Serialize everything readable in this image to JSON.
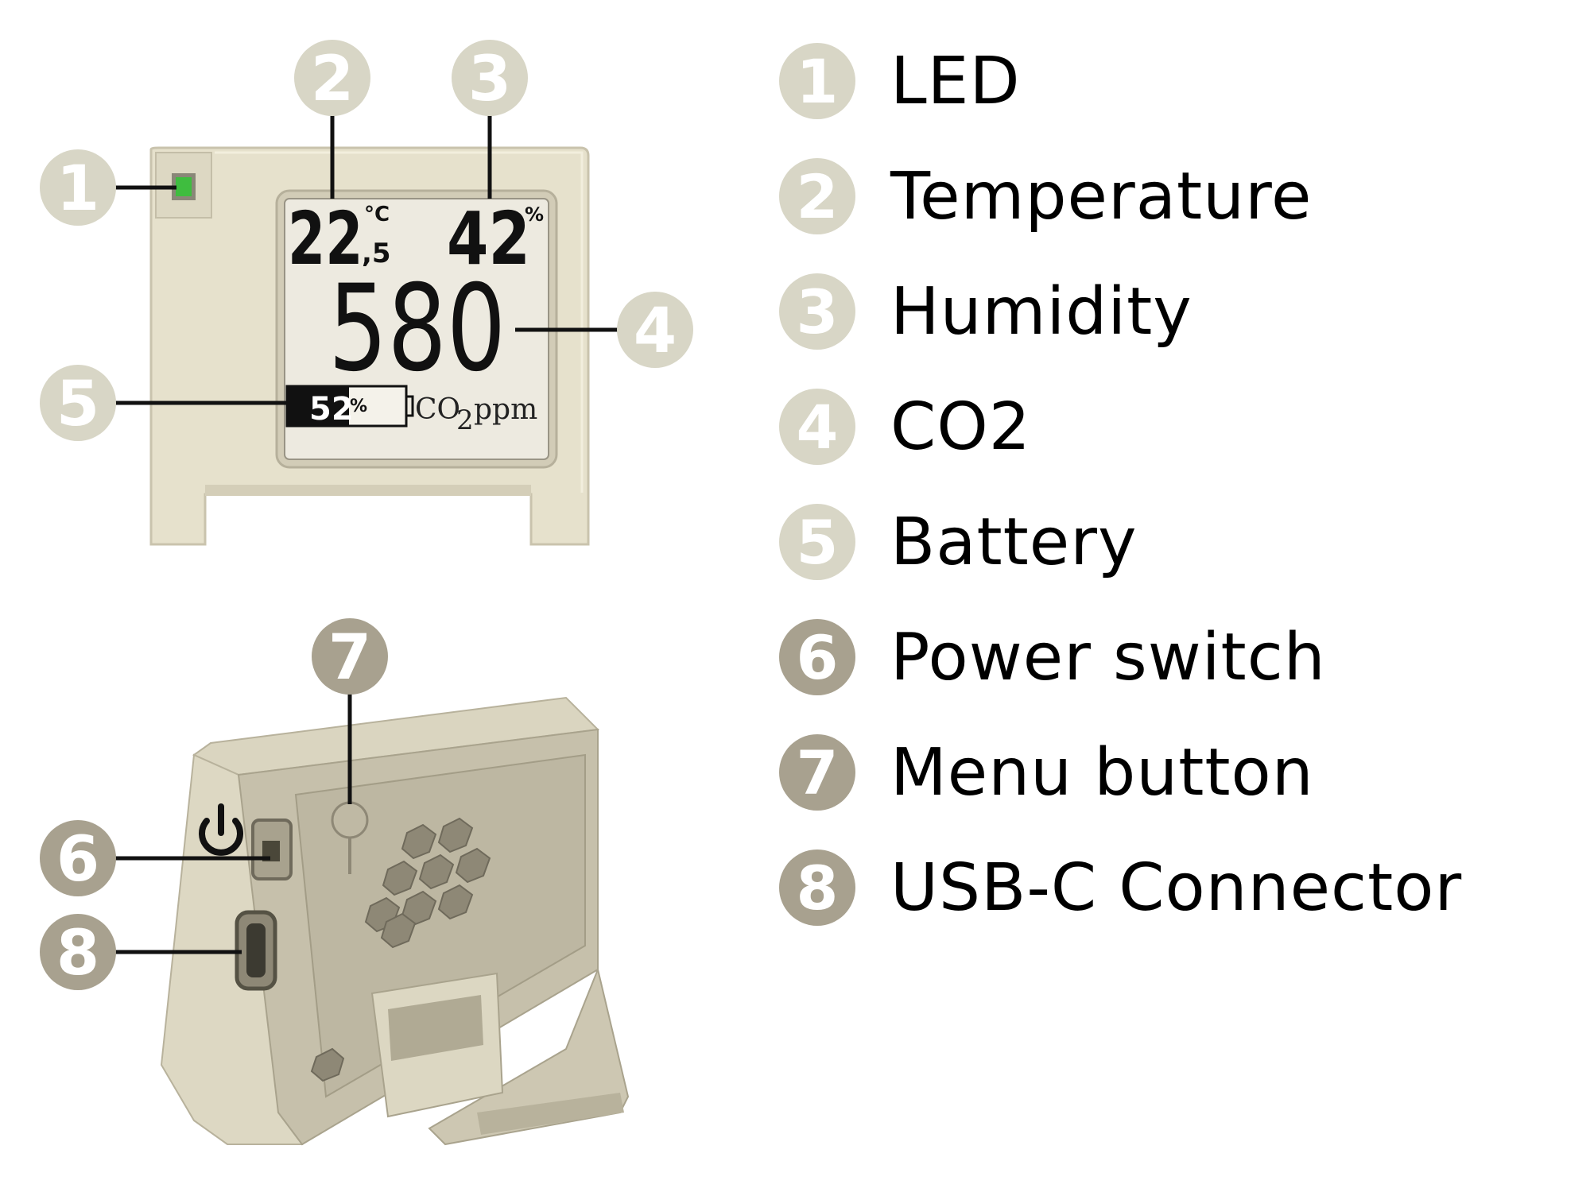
{
  "colors": {
    "badge_light": "#d8d6c6",
    "badge_dark": "#a8a18f",
    "device_front": "#e6e1cc",
    "device_back": "#cfc9b5",
    "screen": "#edeae0",
    "led": "#3fbd3f"
  },
  "device": {
    "temperature_main": "22",
    "temperature_decimal": ",5",
    "temperature_unit": "°C",
    "humidity_value": "42",
    "humidity_unit": "%",
    "co2_value": "580",
    "battery_percent": "52",
    "battery_unit": "%",
    "battery_fill": 0.52,
    "co2_unit_prefix": "CO",
    "co2_unit_sub": "2",
    "co2_unit_suffix": "ppm",
    "power_icon": "power-icon"
  },
  "callouts": {
    "front": [
      "1",
      "2",
      "3",
      "4",
      "5"
    ],
    "back": [
      "6",
      "7",
      "8"
    ]
  },
  "legend": [
    {
      "number": "1",
      "label": "LED",
      "tone": "light"
    },
    {
      "number": "2",
      "label": "Temperature",
      "tone": "light"
    },
    {
      "number": "3",
      "label": "Humidity",
      "tone": "light"
    },
    {
      "number": "4",
      "label": "CO2",
      "tone": "light"
    },
    {
      "number": "5",
      "label": "Battery",
      "tone": "light"
    },
    {
      "number": "6",
      "label": "Power switch",
      "tone": "dark"
    },
    {
      "number": "7",
      "label": "Menu button",
      "tone": "dark"
    },
    {
      "number": "8",
      "label": "USB-C Connector",
      "tone": "dark"
    }
  ]
}
